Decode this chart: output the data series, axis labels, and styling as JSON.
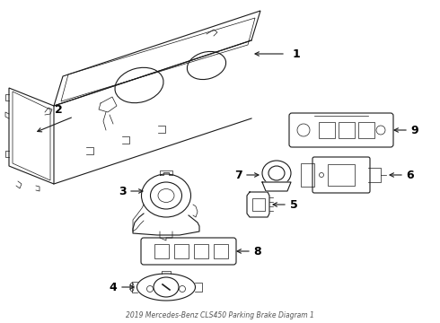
{
  "title": "2019 Mercedes-Benz CLS450 Parking Brake Diagram 1",
  "bg_color": "#ffffff",
  "line_color": "#1a1a1a",
  "label_color": "#000000",
  "fontsize_label": 9
}
